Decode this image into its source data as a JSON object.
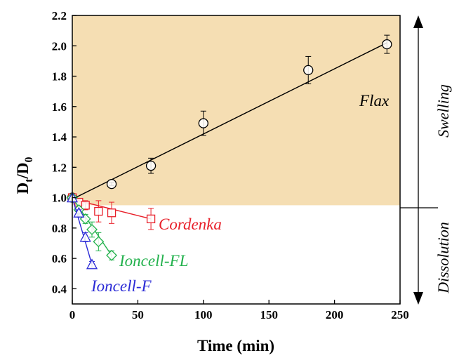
{
  "chart_data": {
    "type": "scatter",
    "xlabel": "Time (min)",
    "ylabel_main": "D",
    "ylabel_sub1": "t",
    "ylabel_slash": "/D",
    "ylabel_sub2": "0",
    "xlim": [
      0,
      250
    ],
    "ylim": [
      0.3,
      2.2
    ],
    "x_ticks": [
      0,
      50,
      100,
      150,
      200,
      250
    ],
    "y_ticks": [
      0.4,
      0.6,
      0.8,
      1.0,
      1.2,
      1.4,
      1.6,
      1.8,
      2.0,
      2.2
    ],
    "x_tick_labels": [
      "0",
      "50",
      "100",
      "150",
      "200",
      "250"
    ],
    "y_tick_labels": [
      "0.4",
      "0.6",
      "0.8",
      "1.0",
      "1.2",
      "1.4",
      "1.6",
      "1.8",
      "2.0",
      "2.2"
    ],
    "shaded_region": {
      "y_from": 0.95,
      "y_to": 2.2,
      "color": "#f5deb3"
    },
    "series": [
      {
        "name": "Flax",
        "marker": "circle",
        "color": "#000000",
        "x": [
          0,
          30,
          60,
          100,
          180,
          240
        ],
        "y": [
          1.0,
          1.09,
          1.21,
          1.49,
          1.84,
          2.01
        ],
        "err": [
          0.0,
          0.01,
          0.05,
          0.08,
          0.09,
          0.06
        ],
        "fit": {
          "x": [
            0,
            240
          ],
          "y": [
            0.99,
            2.02
          ]
        }
      },
      {
        "name": "Cordenka",
        "marker": "square",
        "color": "#e8202a",
        "x": [
          0,
          5,
          10,
          20,
          30,
          60
        ],
        "y": [
          1.0,
          0.97,
          0.95,
          0.91,
          0.9,
          0.86
        ],
        "err": [
          0.0,
          0.02,
          0.03,
          0.07,
          0.07,
          0.07
        ],
        "fit": {
          "x": [
            0,
            60
          ],
          "y": [
            0.99,
            0.86
          ]
        }
      },
      {
        "name": "Ioncell-FL",
        "marker": "diamond",
        "color": "#22b14c",
        "x": [
          0,
          5,
          10,
          15,
          20,
          30
        ],
        "y": [
          1.0,
          0.92,
          0.86,
          0.79,
          0.71,
          0.62
        ],
        "err": [
          0.0,
          0.02,
          0.03,
          0.05,
          0.06,
          0.03
        ],
        "fit": {
          "x": [
            0,
            30
          ],
          "y": [
            1.0,
            0.62
          ]
        }
      },
      {
        "name": "Ioncell-F",
        "marker": "triangle",
        "color": "#2a2ad6",
        "x": [
          0,
          5,
          10,
          15
        ],
        "y": [
          1.0,
          0.9,
          0.74,
          0.56
        ],
        "err": [
          0.0,
          0.02,
          0.03,
          0.02
        ],
        "fit": {
          "x": [
            0,
            15
          ],
          "y": [
            1.0,
            0.56
          ]
        }
      }
    ],
    "annotations": {
      "swelling": "Swelling",
      "dissolution": "Dissolution"
    }
  }
}
